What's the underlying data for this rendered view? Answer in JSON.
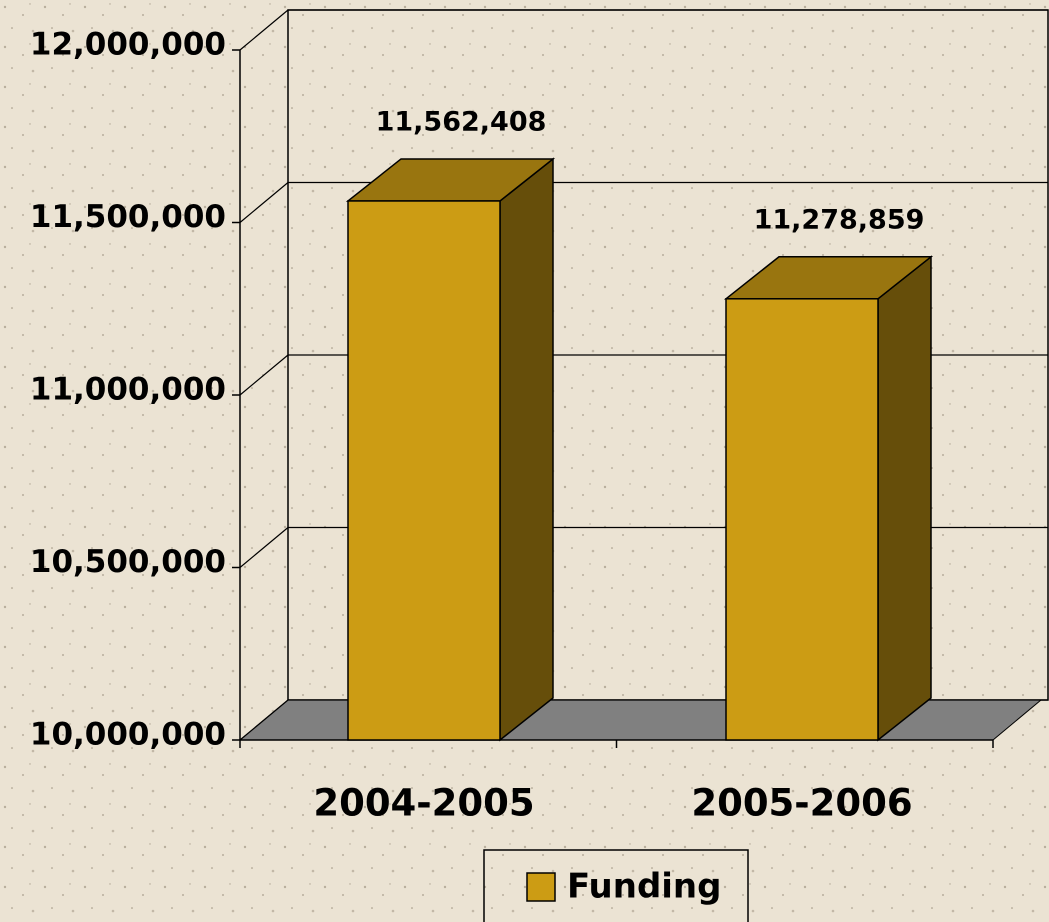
{
  "chart_data": {
    "type": "bar",
    "categories": [
      "2004-2005",
      "2005-2006"
    ],
    "series": [
      {
        "name": "Funding",
        "color": "#cc9c14",
        "values": [
          11562408,
          11278859
        ],
        "value_labels": [
          "11,562,408",
          "11,278,859"
        ]
      }
    ],
    "ylim": [
      10000000,
      12000000
    ],
    "yticks": [
      {
        "value": 10000000,
        "label": "10,000,000"
      },
      {
        "value": 10500000,
        "label": "10,500,000"
      },
      {
        "value": 11000000,
        "label": "11,000,000"
      },
      {
        "value": 11500000,
        "label": "11,500,000"
      },
      {
        "value": 12000000,
        "label": "12,000,000"
      }
    ],
    "grid": true,
    "legend": "bottom"
  }
}
